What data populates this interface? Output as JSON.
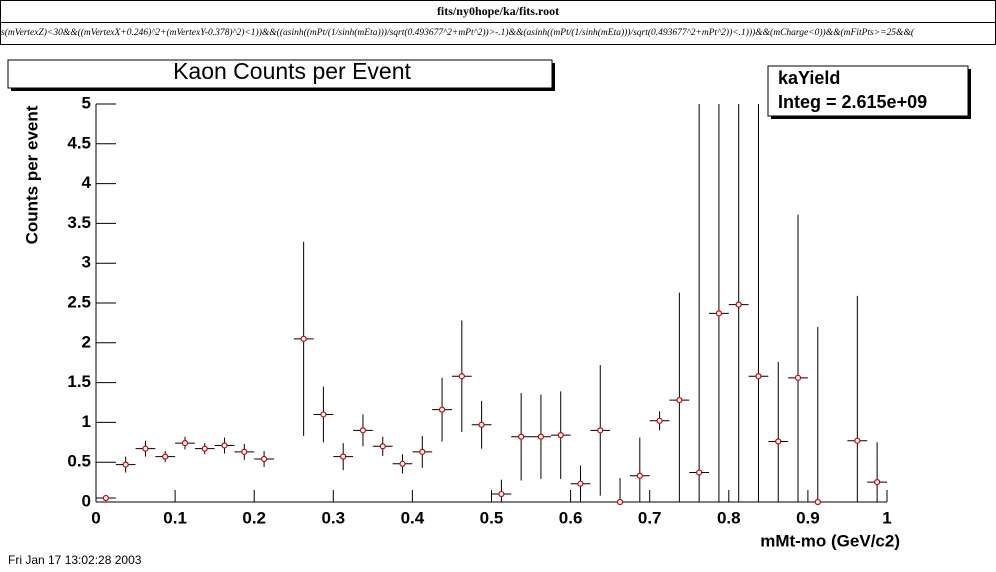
{
  "file_title": "fits/ny0hope/ka/fits.root",
  "cut_expression": "s(mVertexZ)<30&&((mVertexX+0.246)^2+(mVertexY-0.378)^2)<1))&&((asinh((mPt/(1/sinh(mEta)))/sqrt(0.493677^2+mPt^2))>-.1)&&(asinh((mPt/(1/sinh(mEta)))/sqrt(0.493677^2+mPt^2))<.1)))&&(mCharge<0))&&(mFitPts>=25&&(",
  "timestamp": "Fri Jan 17 13:02:28 2003",
  "chart_data": {
    "type": "errorbar",
    "title": "Kaon Counts per Event",
    "stats_name": "kaYield",
    "stats_text": "Integ = 2.615e+09",
    "x_label": "mMt-mo (GeV/c2)",
    "y_label": "Counts per event",
    "color": "#cc0000",
    "x": [
      0.0125,
      0.0375,
      0.0625,
      0.0875,
      0.1125,
      0.1375,
      0.1625,
      0.1875,
      0.2125,
      0.2375,
      0.2625,
      0.2875,
      0.3125,
      0.3375,
      0.3625,
      0.3875,
      0.4125,
      0.4375,
      0.4625,
      0.4875,
      0.5125,
      0.5375,
      0.5625,
      0.5875,
      0.6125,
      0.6375,
      0.6625,
      0.6875,
      0.7125,
      0.7375,
      0.7625,
      0.7875,
      0.8125,
      0.8375,
      0.8625,
      0.8875,
      0.9125,
      0.9375,
      0.9625,
      0.9875
    ],
    "values": [
      0.05,
      0.47,
      0.67,
      0.57,
      0.74,
      0.67,
      0.71,
      0.63,
      0.54,
      null,
      2.05,
      1.1,
      0.57,
      0.9,
      0.7,
      0.48,
      0.63,
      1.16,
      1.58,
      0.97,
      0.1,
      0.82,
      0.82,
      0.84,
      0.23,
      0.9,
      0,
      0.33,
      1.02,
      1.28,
      0.37,
      2.37,
      2.48,
      1.58,
      0.76,
      1.56,
      0,
      null,
      0.77,
      0.25
    ],
    "errors": [
      0.03,
      0.1,
      0.1,
      0.07,
      0.08,
      0.07,
      0.1,
      0.1,
      0.1,
      null,
      1.22,
      0.35,
      0.17,
      0.2,
      0.12,
      0.12,
      0.2,
      0.4,
      0.7,
      0.3,
      0.18,
      0.55,
      0.53,
      0.55,
      0.23,
      0.82,
      0.3,
      0.48,
      0.12,
      1.35,
      5,
      5,
      5,
      5,
      1.0,
      2.05,
      2.2,
      null,
      1.82,
      0.5
    ],
    "xlim": [
      0,
      1
    ],
    "ylim": [
      0,
      5
    ],
    "xticks": [
      0,
      0.1,
      0.2,
      0.3,
      0.4,
      0.5,
      0.6,
      0.7,
      0.8,
      0.9,
      1
    ],
    "yticks": [
      0,
      0.5,
      1,
      1.5,
      2,
      2.5,
      3,
      3.5,
      4,
      4.5,
      5
    ]
  }
}
